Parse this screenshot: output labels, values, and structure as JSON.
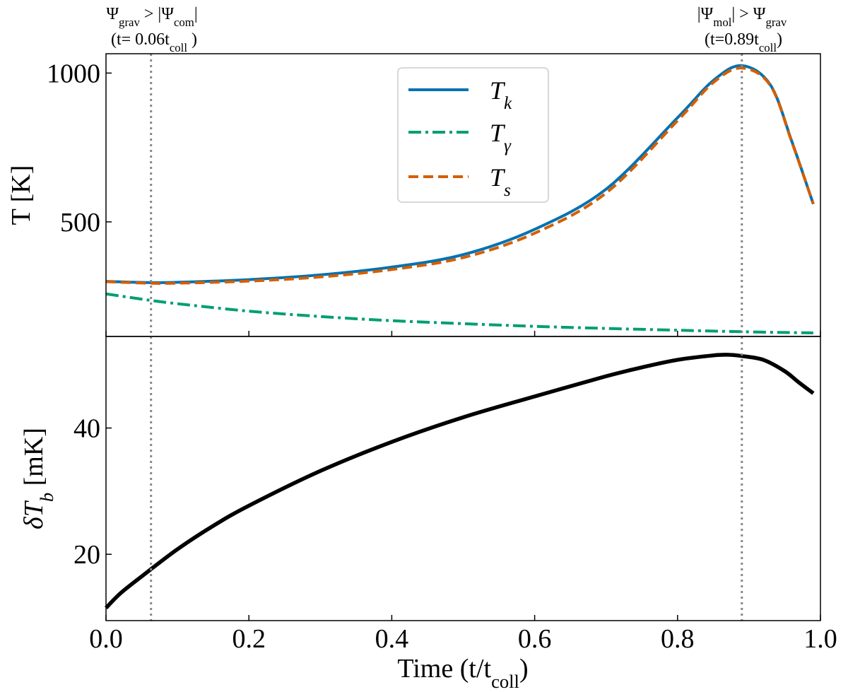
{
  "chart_data": [
    {
      "type": "line",
      "panel": "top",
      "ylabel": "T [K]",
      "xlim": [
        0.0,
        1.0
      ],
      "ylim": [
        115,
        1065
      ],
      "yticks": [
        500,
        1000
      ],
      "ytick_labels": [
        "500",
        "1000"
      ],
      "grid": false,
      "legend_placement": "top-center",
      "x": [
        0.0,
        0.06,
        0.1,
        0.2,
        0.3,
        0.4,
        0.5,
        0.6,
        0.7,
        0.8,
        0.85,
        0.89,
        0.93,
        0.96,
        0.99
      ],
      "series": [
        {
          "name": "T_k",
          "label_main": "T",
          "label_sub": "k",
          "color": "#0072b2",
          "style": "solid",
          "values": [
            300,
            296,
            297,
            306,
            322,
            348,
            390,
            475,
            610,
            850,
            975,
            1025,
            960,
            770,
            560
          ]
        },
        {
          "name": "T_γ",
          "label_main": "T",
          "label_sub": "γ",
          "color": "#009e73",
          "style": "dashdot",
          "values": [
            258,
            237,
            225,
            200,
            182,
            168,
            158,
            149,
            142,
            136,
            133,
            131,
            129,
            128,
            127
          ]
        },
        {
          "name": "T_s",
          "label_main": "T",
          "label_sub": "s",
          "color": "#d55e00",
          "style": "dashed",
          "values": [
            299,
            294,
            294,
            301,
            315,
            340,
            380,
            462,
            597,
            840,
            968,
            1017,
            958,
            768,
            560
          ]
        }
      ]
    },
    {
      "type": "line",
      "panel": "bottom",
      "ylabel": "δT_b [mK]",
      "ylabel_main": "δT",
      "ylabel_sub": "b",
      "ylabel_unit": " [mK]",
      "xlabel": "Time (t/t",
      "xlabel_sub": "coll",
      "xlabel_end": ")",
      "xlim": [
        0.0,
        1.0
      ],
      "ylim": [
        9.5,
        54.5
      ],
      "yticks": [
        20,
        40
      ],
      "ytick_labels": [
        "20",
        "40"
      ],
      "xticks": [
        0.0,
        0.2,
        0.4,
        0.6,
        0.8,
        1.0
      ],
      "xtick_labels": [
        "0.0",
        "0.2",
        "0.4",
        "0.6",
        "0.8",
        "1.0"
      ],
      "grid": false,
      "x": [
        0.0,
        0.02,
        0.05,
        0.1,
        0.15,
        0.2,
        0.3,
        0.4,
        0.5,
        0.6,
        0.7,
        0.75,
        0.8,
        0.85,
        0.87,
        0.89,
        0.92,
        0.95,
        0.97,
        0.99
      ],
      "series": [
        {
          "name": "",
          "color": "#000000",
          "style": "solid",
          "values": [
            11.5,
            13.8,
            16.5,
            20.8,
            24.5,
            27.7,
            33.2,
            37.8,
            41.7,
            45.0,
            48.2,
            49.6,
            50.8,
            51.5,
            51.6,
            51.4,
            50.8,
            49.0,
            47.2,
            45.5
          ]
        }
      ]
    }
  ],
  "vlines": [
    {
      "x": 0.063,
      "label_line1": {
        "psi_a": "Ψ",
        "sub_a": "grav",
        "op": " > |",
        "psi_b": "Ψ",
        "sub_b": "com",
        "end": "|"
      },
      "label_line2": {
        "pre": "(t= 0.06t",
        "sub": "coll",
        "end": " )"
      }
    },
    {
      "x": 0.89,
      "label_line1": {
        "pre": "|",
        "psi_a": "Ψ",
        "sub_a": "mol",
        "op": "| > ",
        "psi_b": "Ψ",
        "sub_b": "grav",
        "end": ""
      },
      "label_line2": {
        "pre": "(t=0.89t",
        "sub": "coll",
        "end": ")"
      }
    }
  ]
}
